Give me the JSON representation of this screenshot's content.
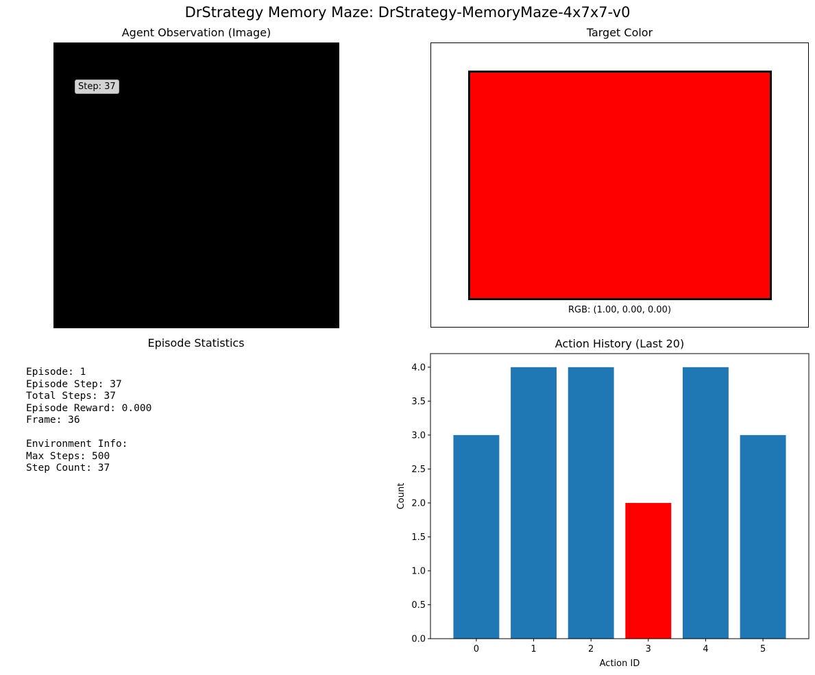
{
  "figure_title": "DrStrategy Memory Maze: DrStrategy-MemoryMaze-4x7x7-v0",
  "observation_panel": {
    "title": "Agent Observation (Image)",
    "step_label": "Step: 37"
  },
  "target_panel": {
    "title": "Target Color",
    "swatch_color": "#ff0000",
    "rgb_label": "RGB: (1.00, 0.00, 0.00)"
  },
  "stats_panel": {
    "title": "Episode Statistics",
    "lines": [
      "Episode: 1",
      "Episode Step: 37",
      "Total Steps: 37",
      "Episode Reward: 0.000",
      "Frame: 36",
      "",
      "Environment Info:",
      "Max Steps: 500",
      "Step Count: 37"
    ]
  },
  "chart_data": {
    "type": "bar",
    "title": "Action History (Last 20)",
    "xlabel": "Action ID",
    "ylabel": "Count",
    "categories": [
      "0",
      "1",
      "2",
      "3",
      "4",
      "5"
    ],
    "values": [
      3,
      4,
      4,
      2,
      4,
      3
    ],
    "colors": [
      "#1f77b4",
      "#1f77b4",
      "#1f77b4",
      "#ff0000",
      "#1f77b4",
      "#1f77b4"
    ],
    "ylim": [
      0,
      4.2
    ],
    "yticks": [
      "0.0",
      "0.5",
      "1.0",
      "1.5",
      "2.0",
      "2.5",
      "3.0",
      "3.5",
      "4.0"
    ],
    "grid": false
  }
}
